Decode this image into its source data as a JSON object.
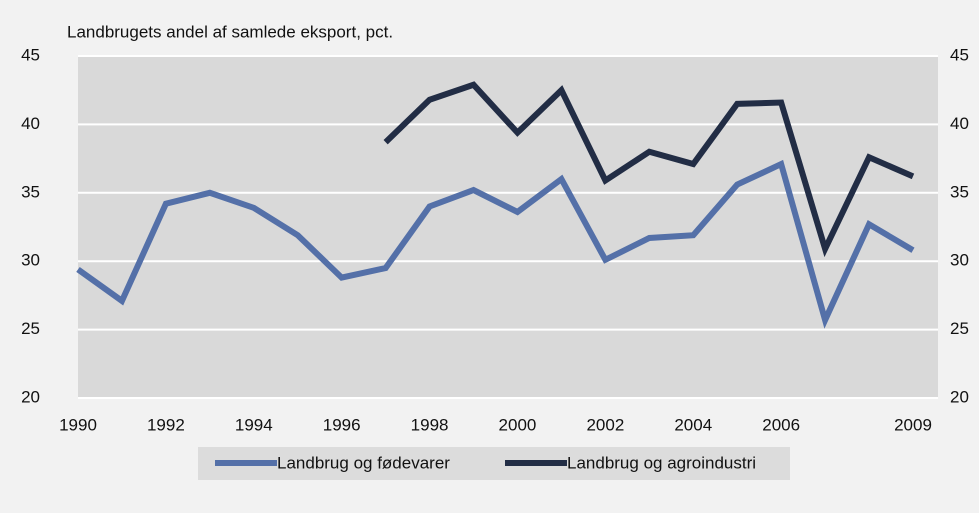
{
  "chart_data": {
    "type": "line",
    "title": "Landbrugets andel af samlede eksport, pct.",
    "x": [
      1990,
      1991,
      1992,
      1993,
      1994,
      1995,
      1996,
      1997,
      1998,
      1999,
      2000,
      2001,
      2002,
      2003,
      2004,
      2005,
      2006,
      2007,
      2008,
      2009
    ],
    "xlim": [
      1990,
      2009
    ],
    "xticks": [
      1990,
      1992,
      1994,
      1996,
      1998,
      2000,
      2002,
      2004,
      2006,
      2009
    ],
    "ylim": [
      20,
      45
    ],
    "yticks": [
      20,
      25,
      30,
      35,
      40,
      45
    ],
    "grid": true,
    "legend": "bottom",
    "series": [
      {
        "name": "Landbrug og fødevarer",
        "color": "#5470a8",
        "values": [
          29.4,
          27.1,
          34.2,
          35.0,
          33.9,
          31.9,
          28.8,
          29.5,
          34.0,
          35.2,
          33.6,
          36.0,
          30.1,
          31.7,
          31.9,
          35.6,
          37.1,
          25.7,
          32.7,
          30.8
        ]
      },
      {
        "name": "Landbrug og agroindustri",
        "color": "#222d45",
        "values": [
          null,
          null,
          null,
          null,
          null,
          null,
          null,
          38.7,
          41.8,
          42.9,
          39.4,
          42.5,
          35.9,
          38.0,
          37.1,
          41.5,
          41.6,
          30.9,
          37.6,
          36.2
        ]
      }
    ]
  }
}
